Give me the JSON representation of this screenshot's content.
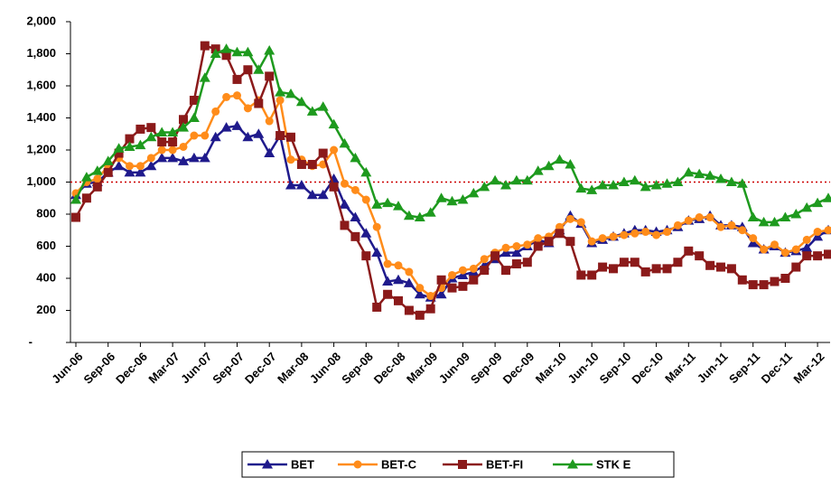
{
  "chart_data": {
    "type": "line",
    "categories": [
      "Jun-06",
      null,
      null,
      "Sep-06",
      null,
      null,
      "Dec-06",
      null,
      null,
      "Mar-07",
      null,
      null,
      "Jun-07",
      null,
      null,
      "Sep-07",
      null,
      null,
      "Dec-07",
      null,
      null,
      "Mar-08",
      null,
      null,
      "Jun-08",
      null,
      null,
      "Sep-08",
      null,
      null,
      "Dec-08",
      null,
      null,
      "Mar-09",
      null,
      null,
      "Jun-09",
      null,
      null,
      "Sep-09",
      null,
      null,
      "Dec-09",
      null,
      null,
      "Mar-10",
      null,
      null,
      "Jun-10",
      null,
      null,
      "Sep-10",
      null,
      null,
      "Dec-10",
      null,
      null,
      "Mar-11",
      null,
      null,
      "Jun-11",
      null,
      null,
      "Sep-11",
      null,
      null,
      "Dec-11",
      null,
      null,
      "Mar-12",
      null
    ],
    "series": [
      {
        "name": "BET",
        "color": "#1f1a8c",
        "marker": "triangle",
        "values": [
          920,
          990,
          1000,
          1060,
          1100,
          1060,
          1060,
          1100,
          1150,
          1150,
          1130,
          1150,
          1150,
          1280,
          1340,
          1350,
          1280,
          1300,
          1180,
          1290,
          980,
          980,
          920,
          920,
          1020,
          860,
          780,
          680,
          560,
          380,
          390,
          370,
          300,
          280,
          300,
          400,
          420,
          440,
          480,
          520,
          560,
          560,
          600,
          640,
          620,
          700,
          790,
          740,
          620,
          640,
          660,
          680,
          700,
          700,
          690,
          700,
          720,
          760,
          770,
          790,
          730,
          730,
          720,
          620,
          580,
          600,
          560,
          570,
          590,
          660,
          700
        ]
      },
      {
        "name": "BET-C",
        "color": "#ff8c1a",
        "marker": "circle",
        "values": [
          930,
          1000,
          1020,
          1100,
          1150,
          1100,
          1100,
          1150,
          1200,
          1200,
          1220,
          1290,
          1290,
          1440,
          1530,
          1540,
          1460,
          1510,
          1380,
          1510,
          1140,
          1140,
          1100,
          1110,
          1200,
          990,
          950,
          890,
          720,
          490,
          480,
          440,
          340,
          290,
          340,
          420,
          450,
          460,
          520,
          560,
          590,
          600,
          610,
          650,
          660,
          720,
          770,
          750,
          630,
          650,
          660,
          670,
          680,
          690,
          670,
          690,
          730,
          760,
          780,
          780,
          720,
          730,
          700,
          650,
          580,
          610,
          560,
          580,
          640,
          690,
          700
        ]
      },
      {
        "name": "BET-FI",
        "color": "#8b1a1a",
        "marker": "square",
        "values": [
          780,
          900,
          970,
          1060,
          1180,
          1270,
          1330,
          1340,
          1250,
          1250,
          1390,
          1510,
          1850,
          1830,
          1790,
          1640,
          1700,
          1490,
          1660,
          1290,
          1280,
          1110,
          1110,
          1180,
          970,
          730,
          660,
          540,
          220,
          300,
          260,
          200,
          170,
          210,
          390,
          340,
          350,
          390,
          450,
          540,
          450,
          490,
          500,
          600,
          630,
          680,
          630,
          420,
          420,
          470,
          460,
          500,
          500,
          440,
          460,
          460,
          500,
          570,
          540,
          480,
          470,
          460,
          390,
          360,
          360,
          380,
          400,
          470,
          540,
          540,
          550
        ]
      },
      {
        "name": "STK E",
        "color": "#1e9a1e",
        "marker": "triangle",
        "values": [
          890,
          1030,
          1070,
          1130,
          1210,
          1220,
          1230,
          1280,
          1310,
          1310,
          1340,
          1400,
          1650,
          1800,
          1830,
          1810,
          1810,
          1700,
          1820,
          1560,
          1550,
          1500,
          1440,
          1470,
          1360,
          1240,
          1150,
          1060,
          860,
          870,
          850,
          790,
          780,
          810,
          900,
          880,
          890,
          930,
          970,
          1010,
          980,
          1010,
          1010,
          1070,
          1100,
          1140,
          1110,
          960,
          950,
          980,
          980,
          1000,
          1010,
          970,
          980,
          990,
          1000,
          1060,
          1050,
          1040,
          1020,
          1000,
          990,
          780,
          750,
          750,
          780,
          800,
          840,
          870,
          900
        ]
      }
    ],
    "ylim": [
      0,
      2000
    ],
    "yticks": [
      {
        "value": 0,
        "label": "-"
      },
      200,
      400,
      600,
      800,
      {
        "value": 1000,
        "label": "1,000"
      },
      {
        "value": 1200,
        "label": "1,200"
      },
      {
        "value": 1400,
        "label": "1,400"
      },
      {
        "value": 1600,
        "label": "1,600"
      },
      {
        "value": 1800,
        "label": "1,800"
      },
      {
        "value": 2000,
        "label": "2,000"
      }
    ],
    "reference_line": {
      "value": 1000,
      "color": "#cc0000"
    },
    "legend": "bottom"
  }
}
